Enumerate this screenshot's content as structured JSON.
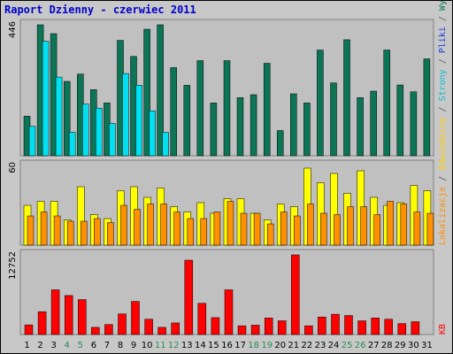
{
  "title": "Raport Dzienny -  czerwiec 2011",
  "colors": {
    "background": "#c8c8c8",
    "panel": "#c0c0c0",
    "title": "#0000cc",
    "weekday_label": "#000000",
    "weekend_label": "#2e8b57",
    "visits": "#0b7556",
    "pages": "#00e0f0",
    "files": "#1e3cd8",
    "locations": "#ffff00",
    "visitors": "#ff9000",
    "kb": "#ff0000"
  },
  "right_legend": {
    "segments": [
      {
        "text": "Lokalizacje",
        "color": "#ff9000"
      },
      {
        "text": " / ",
        "color": "#555555"
      },
      {
        "text": "Odwiedziny",
        "color": "#ffcc00"
      },
      {
        "text": " / ",
        "color": "#555555"
      },
      {
        "text": "Strony",
        "color": "#00c0d0"
      },
      {
        "text": " / ",
        "color": "#555555"
      },
      {
        "text": "Pliki",
        "color": "#1e3cd8"
      },
      {
        "text": " / ",
        "color": "#555555"
      },
      {
        "text": "Wywolania",
        "color": "#0b7556"
      }
    ],
    "kb": {
      "text": "KB",
      "color": "#ff0000"
    }
  },
  "chart_data": [
    {
      "type": "bar",
      "name": "top",
      "ymax_label": "446",
      "ylim": [
        0,
        446
      ],
      "categories": [
        "1",
        "2",
        "3",
        "4",
        "5",
        "6",
        "7",
        "8",
        "9",
        "10",
        "11",
        "12",
        "13",
        "14",
        "15",
        "16",
        "17",
        "18",
        "19",
        "20",
        "21",
        "22",
        "23",
        "24",
        "25",
        "26",
        "27",
        "28",
        "29",
        "30",
        "31"
      ],
      "weekend_days": [
        4,
        5,
        11,
        12,
        18,
        19,
        25,
        26
      ],
      "series": [
        {
          "key": "visits",
          "values": [
            135,
            446,
            416,
            253,
            278,
            225,
            180,
            393,
            338,
            431,
            446,
            300,
            240,
            324,
            180,
            324,
            198,
            208,
            315,
            86,
            211,
            180,
            360,
            248,
            395,
            198,
            220,
            360,
            241,
            218,
            330
          ]
        },
        {
          "key": "files",
          "values": [
            0,
            0,
            0,
            0,
            0,
            0,
            0,
            0,
            0,
            0,
            0,
            0,
            0,
            0,
            0,
            0,
            0,
            0,
            0,
            0,
            0,
            0,
            0,
            0,
            0,
            0,
            0,
            0,
            0,
            0,
            0
          ]
        },
        {
          "key": "pages",
          "values": [
            100,
            390,
            268,
            80,
            176,
            162,
            110,
            280,
            240,
            153,
            80,
            0,
            0,
            0,
            0,
            0,
            0,
            0,
            0,
            0,
            0,
            0,
            0,
            0,
            0,
            0,
            0,
            0,
            0,
            0,
            0
          ]
        }
      ]
    },
    {
      "type": "bar",
      "name": "middle",
      "ymax_label": "60",
      "ylim": [
        0,
        60
      ],
      "categories": [
        "1",
        "2",
        "3",
        "4",
        "5",
        "6",
        "7",
        "8",
        "9",
        "10",
        "11",
        "12",
        "13",
        "14",
        "15",
        "16",
        "17",
        "18",
        "19",
        "20",
        "21",
        "22",
        "23",
        "24",
        "25",
        "26",
        "27",
        "28",
        "29",
        "30",
        "31"
      ],
      "weekend_days": [
        4,
        5,
        11,
        12,
        18,
        19,
        25,
        26
      ],
      "series": [
        {
          "key": "locations",
          "values": [
            30,
            33,
            33,
            19,
            44,
            23,
            20,
            41,
            44,
            36,
            43,
            29,
            25,
            32,
            24,
            35,
            35,
            24,
            19,
            31,
            29,
            58,
            47,
            54,
            39,
            56,
            36,
            30,
            32,
            45,
            41
          ]
        },
        {
          "key": "visitors",
          "values": [
            22,
            25,
            22,
            18,
            18,
            20,
            17,
            30,
            27,
            31,
            31,
            25,
            20,
            20,
            25,
            33,
            24,
            24,
            16,
            25,
            22,
            31,
            24,
            23,
            29,
            29,
            23,
            33,
            31,
            25,
            24
          ]
        }
      ]
    },
    {
      "type": "bar",
      "name": "bottom",
      "ymax_label": "12752",
      "ylim": [
        0,
        12752
      ],
      "categories": [
        "1",
        "2",
        "3",
        "4",
        "5",
        "6",
        "7",
        "8",
        "9",
        "10",
        "11",
        "12",
        "13",
        "14",
        "15",
        "16",
        "17",
        "18",
        "19",
        "20",
        "21",
        "22",
        "23",
        "24",
        "25",
        "26",
        "27",
        "28",
        "29",
        "30",
        "31"
      ],
      "weekend_days": [
        4,
        5,
        11,
        12,
        18,
        19,
        25,
        26
      ],
      "series": [
        {
          "key": "kb",
          "values": [
            1550,
            3650,
            7150,
            6250,
            5600,
            1150,
            1600,
            3300,
            5300,
            2450,
            1150,
            1850,
            11900,
            5000,
            2700,
            7150,
            1400,
            1500,
            2650,
            2200,
            12750,
            1400,
            2800,
            3250,
            3050,
            2200,
            2650,
            2450,
            1750,
            2050,
            0
          ]
        }
      ]
    }
  ]
}
